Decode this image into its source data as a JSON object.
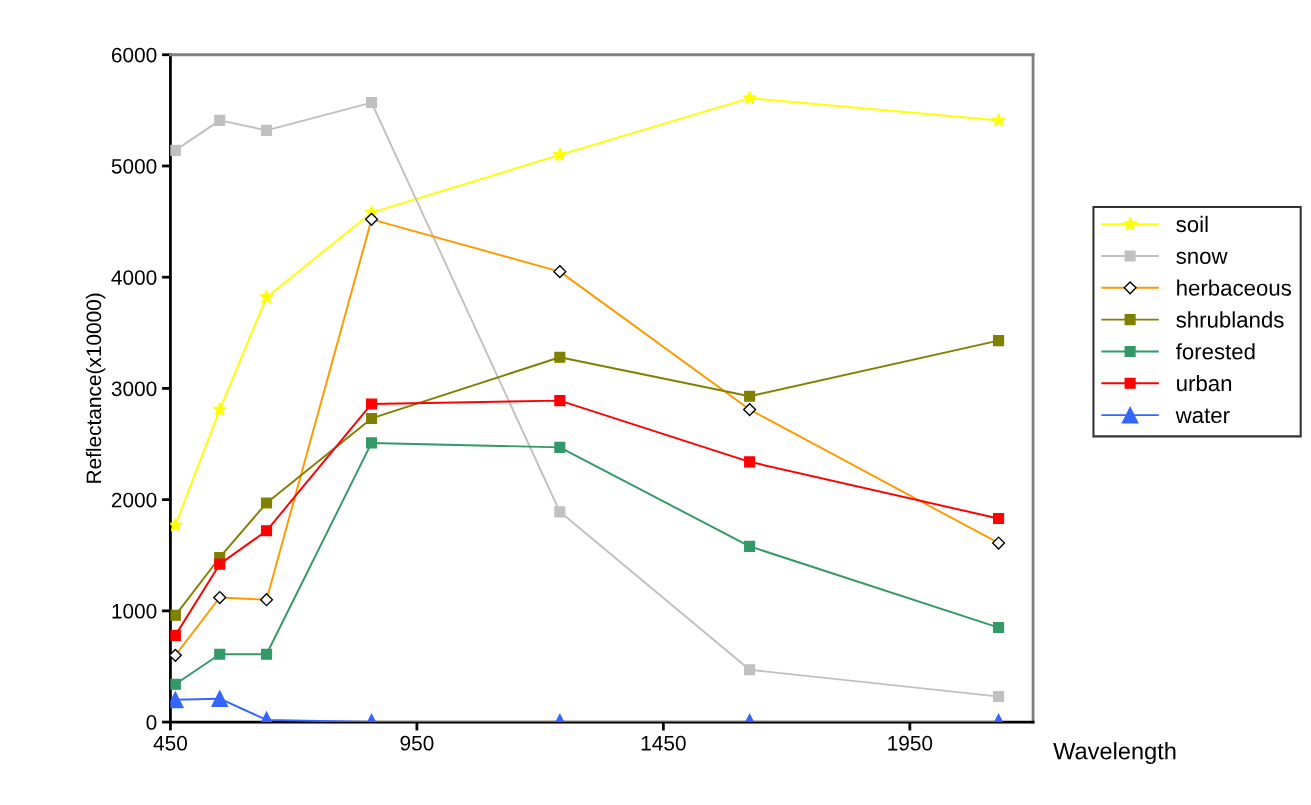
{
  "chart_data": {
    "type": "line",
    "xlabel": "Wavelength",
    "ylabel": "Reflectance(x10000)",
    "x": [
      460,
      550,
      645,
      858,
      1240,
      1625,
      2130
    ],
    "xlim": [
      450,
      2200
    ],
    "xticks": [
      450,
      950,
      1450,
      1950
    ],
    "ylim": [
      0,
      6000
    ],
    "yticks": [
      0,
      1000,
      2000,
      3000,
      4000,
      5000,
      6000
    ],
    "grid": false,
    "legend": "right",
    "series": [
      {
        "name": "soil",
        "color": "#ffff00",
        "marker": "star",
        "values": [
          1770,
          2810,
          3820,
          4580,
          5100,
          5610,
          5410
        ]
      },
      {
        "name": "snow",
        "color": "#c0c0c0",
        "marker": "square",
        "values": [
          5140,
          5410,
          5320,
          5570,
          1890,
          470,
          230
        ]
      },
      {
        "name": "herbaceous",
        "color": "#ff9900",
        "marker": "diamond",
        "values": [
          600,
          1120,
          1100,
          4520,
          4050,
          2810,
          1610
        ]
      },
      {
        "name": "shrublands",
        "color": "#808000",
        "marker": "square",
        "values": [
          960,
          1480,
          1970,
          2730,
          3280,
          2930,
          3430
        ]
      },
      {
        "name": "forested",
        "color": "#339966",
        "marker": "square",
        "values": [
          340,
          610,
          610,
          2510,
          2470,
          1580,
          850
        ]
      },
      {
        "name": "urban",
        "color": "#ff0000",
        "marker": "square",
        "values": [
          780,
          1420,
          1720,
          2860,
          2890,
          2340,
          1830
        ]
      },
      {
        "name": "water",
        "color": "#3366ff",
        "marker": "triangle",
        "values": [
          200,
          210,
          20,
          0,
          0,
          0,
          0
        ]
      }
    ]
  }
}
